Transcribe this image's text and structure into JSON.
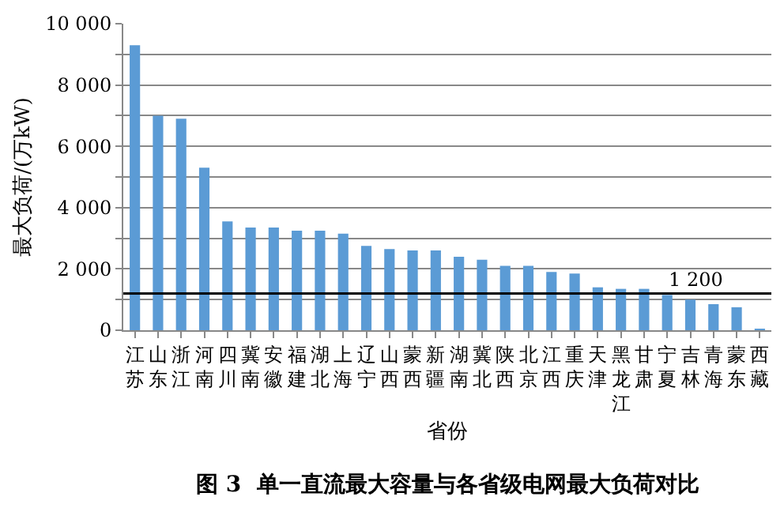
{
  "chart_data": {
    "type": "bar",
    "title": "图 3  单一直流最大容量与各省级电网最大负荷对比",
    "xlabel": "省份",
    "ylabel": "最大负荷/(万kW)",
    "categories": [
      "江苏",
      "山东",
      "浙江",
      "河南",
      "四川",
      "冀南",
      "安徽",
      "福建",
      "湖北",
      "上海",
      "辽宁",
      "山西",
      "蒙西",
      "新疆",
      "湖南",
      "冀北",
      "陕西",
      "北京",
      "江西",
      "重庆",
      "天津",
      "黑龙江",
      "甘肃",
      "宁夏",
      "吉林",
      "青海",
      "蒙东",
      "西藏"
    ],
    "values": [
      9300,
      7000,
      6900,
      5300,
      3550,
      3350,
      3350,
      3250,
      3250,
      3150,
      2750,
      2650,
      2600,
      2600,
      2400,
      2300,
      2100,
      2100,
      1900,
      1850,
      1400,
      1350,
      1350,
      1150,
      1000,
      850,
      750,
      50
    ],
    "color": "#5b9bd5",
    "ylim": [
      0,
      10000
    ],
    "yticks": [
      0,
      {
        "value": 1000,
        "label": null
      },
      {
        "value": 2000,
        "label": "2 000"
      },
      {
        "value": 3000,
        "label": null
      },
      {
        "value": 4000,
        "label": "4 000"
      },
      {
        "value": 5000,
        "label": null
      },
      {
        "value": 6000,
        "label": "6 000"
      },
      {
        "value": 7000,
        "label": null
      },
      {
        "value": 8000,
        "label": "8 000"
      },
      {
        "value": 9000,
        "label": null
      },
      {
        "value": 10000,
        "label": "10 000"
      }
    ],
    "grid": true,
    "ref_lines": [
      {
        "axis": "y",
        "value": 1200,
        "label": "1 200",
        "color": "#000000"
      }
    ]
  }
}
